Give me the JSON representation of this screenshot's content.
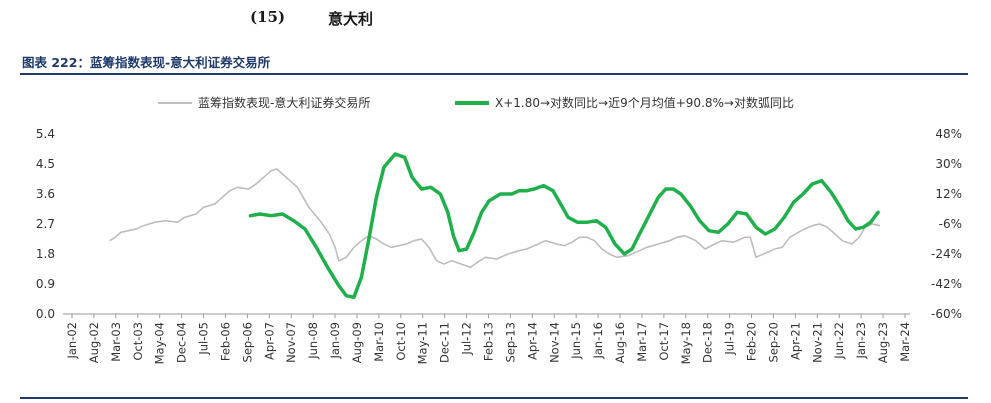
{
  "header": {
    "section_number": "(15)",
    "section_title": "意大利",
    "figure_title": "图表 222：蓝筹指数表现-意大利证券交易所"
  },
  "chart_data": {
    "type": "line",
    "legend_placement": "top",
    "grid": false,
    "colors": {
      "gray": "#bdbdbd",
      "green": "#1fb04b"
    },
    "x_tick_labels": [
      "Jan-02",
      "Aug-02",
      "Mar-03",
      "Oct-03",
      "May-04",
      "Dec-04",
      "Jul-05",
      "Feb-06",
      "Sep-06",
      "Apr-07",
      "Nov-07",
      "Jun-08",
      "Jan-09",
      "Aug-09",
      "Mar-10",
      "Oct-10",
      "May-11",
      "Dec-11",
      "Jul-12",
      "Feb-13",
      "Sep-13",
      "Apr-14",
      "Nov-14",
      "Jun-15",
      "Jan-16",
      "Aug-16",
      "Mar-17",
      "Oct-17",
      "May-18",
      "Dec-18",
      "Jul-19",
      "Feb-20",
      "Sep-20",
      "Apr-21",
      "Nov-21",
      "Jun-22",
      "Jan-23",
      "Aug-23",
      "Mar-24"
    ],
    "x_start_year": 2002.0,
    "x_tick_step_years": 0.5833,
    "left_axis": {
      "min": 0,
      "max": 5.4,
      "ticks": [
        "0.0",
        "0.9",
        "1.8",
        "2.7",
        "3.6",
        "4.5",
        "5.4"
      ]
    },
    "right_axis": {
      "min": -60,
      "max": 48,
      "ticks": [
        "-60%",
        "-42%",
        "-24%",
        "-6%",
        "12%",
        "30%",
        "48%"
      ]
    },
    "series": [
      {
        "name": "蓝筹指数表现-意大利证券交易所",
        "axis": "left",
        "color": "#bdbdbd",
        "x": [
          2003.0,
          2003.15,
          2003.3,
          2003.5,
          2003.7,
          2003.9,
          2004.2,
          2004.5,
          2004.8,
          2005.0,
          2005.3,
          2005.5,
          2005.8,
          2006.0,
          2006.2,
          2006.4,
          2006.7,
          2006.9,
          2007.1,
          2007.3,
          2007.45,
          2007.6,
          2007.8,
          2008.0,
          2008.3,
          2008.6,
          2008.85,
          2009.0,
          2009.1,
          2009.3,
          2009.5,
          2009.7,
          2009.9,
          2010.1,
          2010.3,
          2010.5,
          2010.7,
          2010.9,
          2011.1,
          2011.3,
          2011.5,
          2011.7,
          2011.9,
          2012.1,
          2012.35,
          2012.6,
          2012.85,
          2013.0,
          2013.3,
          2013.6,
          2013.9,
          2014.1,
          2014.4,
          2014.6,
          2014.9,
          2015.1,
          2015.3,
          2015.5,
          2015.7,
          2015.9,
          2016.1,
          2016.3,
          2016.5,
          2016.8,
          2017.0,
          2017.3,
          2017.6,
          2017.9,
          2018.1,
          2018.3,
          2018.6,
          2018.85,
          2019.1,
          2019.3,
          2019.6,
          2019.9,
          2020.05,
          2020.2,
          2020.4,
          2020.7,
          2020.9,
          2021.1,
          2021.4,
          2021.7,
          2021.9,
          2022.1,
          2022.3,
          2022.5,
          2022.75,
          2022.95,
          2023.1,
          2023.3,
          2023.5
        ],
        "values": [
          2.2,
          2.3,
          2.45,
          2.5,
          2.55,
          2.65,
          2.75,
          2.8,
          2.75,
          2.9,
          3.0,
          3.2,
          3.3,
          3.5,
          3.7,
          3.8,
          3.75,
          3.9,
          4.1,
          4.3,
          4.35,
          4.2,
          4.0,
          3.8,
          3.2,
          2.8,
          2.4,
          2.0,
          1.6,
          1.7,
          2.0,
          2.2,
          2.35,
          2.25,
          2.1,
          2.0,
          2.05,
          2.1,
          2.2,
          2.25,
          2.0,
          1.6,
          1.5,
          1.6,
          1.5,
          1.4,
          1.6,
          1.7,
          1.65,
          1.8,
          1.9,
          1.95,
          2.1,
          2.2,
          2.1,
          2.05,
          2.15,
          2.3,
          2.3,
          2.2,
          1.95,
          1.8,
          1.7,
          1.75,
          1.85,
          2.0,
          2.1,
          2.2,
          2.3,
          2.35,
          2.2,
          1.95,
          2.1,
          2.2,
          2.15,
          2.3,
          2.3,
          1.7,
          1.8,
          1.95,
          2.0,
          2.3,
          2.5,
          2.65,
          2.7,
          2.6,
          2.4,
          2.2,
          2.1,
          2.3,
          2.6,
          2.7,
          2.65
        ]
      },
      {
        "name": "X+1.80→对数同比→近9个月均值+90.8%→对数弧同比",
        "axis": "right",
        "color": "#1fb04b",
        "x": [
          2006.75,
          2007.0,
          2007.3,
          2007.6,
          2007.9,
          2008.2,
          2008.5,
          2008.8,
          2009.1,
          2009.3,
          2009.5,
          2009.7,
          2009.9,
          2010.1,
          2010.3,
          2010.6,
          2010.85,
          2011.05,
          2011.3,
          2011.55,
          2011.8,
          2012.0,
          2012.15,
          2012.3,
          2012.5,
          2012.7,
          2012.9,
          2013.1,
          2013.4,
          2013.7,
          2013.9,
          2014.1,
          2014.3,
          2014.55,
          2014.8,
          2015.0,
          2015.2,
          2015.45,
          2015.7,
          2015.95,
          2016.2,
          2016.45,
          2016.7,
          2016.9,
          2017.1,
          2017.35,
          2017.6,
          2017.8,
          2018.0,
          2018.2,
          2018.45,
          2018.7,
          2018.95,
          2019.2,
          2019.45,
          2019.7,
          2019.95,
          2020.2,
          2020.45,
          2020.7,
          2020.95,
          2021.2,
          2021.45,
          2021.7,
          2021.95,
          2022.2,
          2022.45,
          2022.65,
          2022.85,
          2023.05,
          2023.25,
          2023.45
        ],
        "values": [
          -1,
          0,
          -1,
          0,
          -4,
          -9,
          -20,
          -32,
          -43,
          -49,
          -50,
          -38,
          -15,
          10,
          28,
          36,
          34,
          22,
          15,
          16,
          12,
          1,
          -13,
          -22,
          -21,
          -11,
          1,
          8,
          12,
          12,
          14,
          14,
          15,
          17,
          14,
          6,
          -2,
          -5,
          -5,
          -4,
          -8,
          -18,
          -24,
          -21,
          -12,
          -1,
          10,
          15,
          15,
          12,
          5,
          -4,
          -10,
          -11,
          -6,
          1,
          0,
          -8,
          -12,
          -9,
          -2,
          7,
          12,
          18,
          20,
          13,
          4,
          -4,
          -9,
          -8,
          -5,
          1
        ]
      }
    ]
  }
}
